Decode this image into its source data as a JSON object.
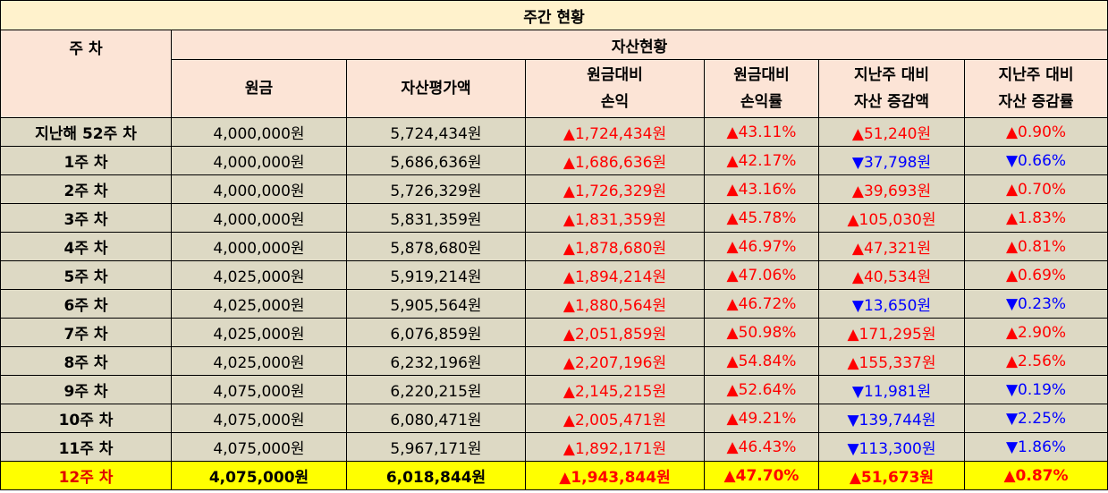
{
  "title": "주간 현황",
  "header": {
    "week": "주 차",
    "group": "자산현황",
    "cols": [
      [
        "원금"
      ],
      [
        "자산평가액"
      ],
      [
        "원금대비",
        "손익"
      ],
      [
        "원금대비",
        "손익률"
      ],
      [
        "지난주 대비",
        "자산 증감액"
      ],
      [
        "지난주 대비",
        "자산 증감률"
      ]
    ]
  },
  "colors": {
    "up": "#ff0000",
    "down": "#0000ff",
    "highlight": "#ffff00"
  },
  "rows": [
    [
      "지난해 52주 차",
      "4,000,000원",
      "5,724,434원",
      "▲1,724,434원",
      "▲43.11%",
      "▲51,240원",
      "▲0.90%"
    ],
    [
      "1주 차",
      "4,000,000원",
      "5,686,636원",
      "▲1,686,636원",
      "▲42.17%",
      "▼37,798원",
      "▼0.66%"
    ],
    [
      "2주 차",
      "4,000,000원",
      "5,726,329원",
      "▲1,726,329원",
      "▲43.16%",
      "▲39,693원",
      "▲0.70%"
    ],
    [
      "3주 차",
      "4,000,000원",
      "5,831,359원",
      "▲1,831,359원",
      "▲45.78%",
      "▲105,030원",
      "▲1.83%"
    ],
    [
      "4주 차",
      "4,000,000원",
      "5,878,680원",
      "▲1,878,680원",
      "▲46.97%",
      "▲47,321원",
      "▲0.81%"
    ],
    [
      "5주 차",
      "4,025,000원",
      "5,919,214원",
      "▲1,894,214원",
      "▲47.06%",
      "▲40,534원",
      "▲0.69%"
    ],
    [
      "6주 차",
      "4,025,000원",
      "5,905,564원",
      "▲1,880,564원",
      "▲46.72%",
      "▼13,650원",
      "▼0.23%"
    ],
    [
      "7주 차",
      "4,025,000원",
      "6,076,859원",
      "▲2,051,859원",
      "▲50.98%",
      "▲171,295원",
      "▲2.90%"
    ],
    [
      "8주 차",
      "4,025,000원",
      "6,232,196원",
      "▲2,207,196원",
      "▲54.84%",
      "▲155,337원",
      "▲2.56%"
    ],
    [
      "9주 차",
      "4,075,000원",
      "6,220,215원",
      "▲2,145,215원",
      "▲52.64%",
      "▼11,981원",
      "▼0.19%"
    ],
    [
      "10주 차",
      "4,075,000원",
      "6,080,471원",
      "▲2,005,471원",
      "▲49.21%",
      "▼139,744원",
      "▼2.25%"
    ],
    [
      "11주 차",
      "4,075,000원",
      "5,967,171원",
      "▲1,892,171원",
      "▲46.43%",
      "▼113,300원",
      "▼1.86%"
    ],
    [
      "12주 차",
      "4,075,000원",
      "6,018,844원",
      "▲1,943,844원",
      "▲47.70%",
      "▲51,673원",
      "▲0.87%"
    ]
  ]
}
